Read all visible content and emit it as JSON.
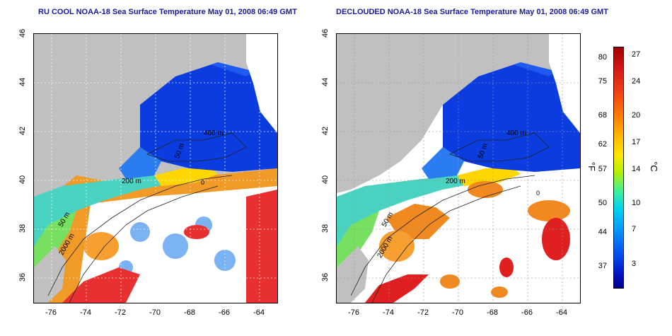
{
  "titles": {
    "left": "RU COOL NOAA-18 Sea Surface Temperature May 01, 2008 06:49 GMT",
    "right": "DECLOUDED NOAA-18 Sea Surface Temperature May 01, 2008 06:49 GMT"
  },
  "axes": {
    "x_ticks": [
      "-76",
      "-74",
      "-72",
      "-70",
      "-68",
      "-66",
      "-64"
    ],
    "y_ticks": [
      "46",
      "44",
      "42",
      "40",
      "38",
      "36"
    ],
    "lon_range": [
      -77,
      -63
    ],
    "lat_range": [
      35,
      46
    ]
  },
  "contours": {
    "labels": [
      "400 m",
      "50 m",
      "200 m",
      "50 m",
      "2000 m",
      "0"
    ]
  },
  "colorbar": {
    "fahrenheit_label": "°F",
    "celsius_label": "°C",
    "fahrenheit_ticks": [
      "80",
      "75",
      "68",
      "62",
      "57",
      "50",
      "44",
      "37"
    ],
    "celsius_ticks": [
      "27",
      "24",
      "20",
      "17",
      "14",
      "10",
      "7",
      "3"
    ]
  },
  "colors": {
    "land": "#c0c0c0",
    "cold": "#0028e6",
    "warm": "#e01010",
    "title_text": "#1a1aa0"
  }
}
